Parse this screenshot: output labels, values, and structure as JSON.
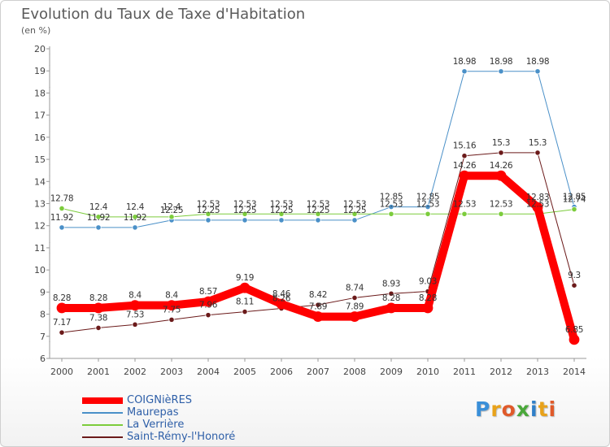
{
  "header": {
    "title": "Evolution du Taux de Taxe d'Habitation",
    "subtitle": "(en %)"
  },
  "logo": {
    "text": "Proxiti",
    "letter_colors": [
      "#3a8fd8",
      "#e8a21a",
      "#e05a2a",
      "#4aa83a",
      "#2f7fc8",
      "#e8a21a",
      "#e05a2a"
    ]
  },
  "chart_data": {
    "type": "line",
    "categories": [
      "2000",
      "2001",
      "2002",
      "2003",
      "2004",
      "2005",
      "2006",
      "2007",
      "2008",
      "2009",
      "2010",
      "2011",
      "2012",
      "2013",
      "2014"
    ],
    "ylim": [
      6,
      20
    ],
    "yticks": [
      6,
      7,
      8,
      9,
      10,
      11,
      12,
      13,
      14,
      15,
      16,
      17,
      18,
      19,
      20
    ],
    "grid": false,
    "legend_position": "bottom-left",
    "series": [
      {
        "name": "COIGNièRES",
        "color": "#ff0000",
        "width": 10,
        "values": [
          8.28,
          8.28,
          8.4,
          8.4,
          8.57,
          9.19,
          8.46,
          7.89,
          7.89,
          8.28,
          8.28,
          14.26,
          14.26,
          12.83,
          6.85
        ],
        "labels": [
          "8.28",
          "8.28",
          "8.4",
          "8.4",
          "8.57",
          "9.19",
          "8.46",
          "7.89",
          "7.89",
          "8.28",
          "8.28",
          "14.26",
          "14.26",
          "12.83",
          "6.85"
        ]
      },
      {
        "name": "Maurepas",
        "color": "#4a90c8",
        "width": 1,
        "values": [
          11.92,
          11.92,
          11.92,
          12.25,
          12.25,
          12.25,
          12.25,
          12.25,
          12.25,
          12.85,
          12.85,
          18.98,
          18.98,
          18.98,
          12.85
        ],
        "labels": [
          "11.92",
          "11.92",
          "11.92",
          "12.25",
          "12.25",
          "12.25",
          "12.25",
          "12.25",
          "12.25",
          "12.85",
          "12.85",
          "18.98",
          "18.98",
          "18.98",
          "12.85"
        ]
      },
      {
        "name": "La Verrière",
        "color": "#7ccc3c",
        "width": 1,
        "values": [
          12.78,
          12.4,
          12.4,
          12.4,
          12.53,
          12.53,
          12.53,
          12.53,
          12.53,
          12.53,
          12.53,
          12.53,
          12.53,
          12.53,
          12.74
        ],
        "labels": [
          "12.78",
          "12.4",
          "12.4",
          "12.4",
          "12.53",
          "12.53",
          "12.53",
          "12.53",
          "12.53",
          "12.53",
          "12.53",
          "12.53",
          "12.53",
          "12.53",
          "12.74"
        ]
      },
      {
        "name": "Saint-Rémy-l'Honoré",
        "color": "#6b1a1a",
        "width": 1,
        "values": [
          7.17,
          7.38,
          7.53,
          7.75,
          7.96,
          8.11,
          8.26,
          8.42,
          8.74,
          8.93,
          9.03,
          15.16,
          15.3,
          15.3,
          9.3
        ],
        "labels": [
          "7.17",
          "7.38",
          "7.53",
          "7.75",
          "7.96",
          "8.11",
          "8.26",
          "8.42",
          "8.74",
          "8.93",
          "9.03",
          "15.16",
          "15.3",
          "15.3",
          "9.3"
        ]
      }
    ]
  }
}
